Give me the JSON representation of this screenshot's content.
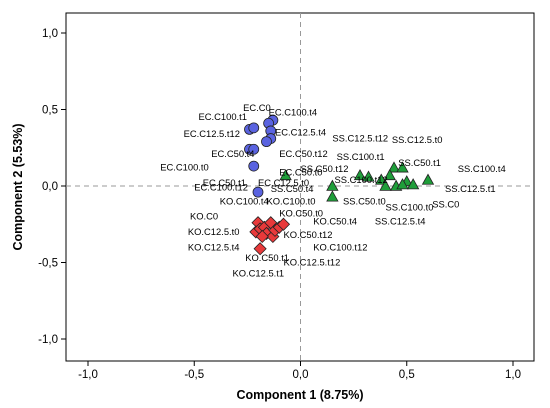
{
  "chart_data": {
    "type": "scatter",
    "xlabel": "Component 1 (8.75%)",
    "ylabel": "Component 2 (5.53%)",
    "xlim": [
      -1.0,
      1.0
    ],
    "ylim": [
      -1.0,
      1.0
    ],
    "x_ticks": [
      "-1,0",
      "-0,5",
      "0,0",
      "0,5",
      "1,0"
    ],
    "y_ticks": [
      "1,0",
      "0,5",
      "0,0",
      "-0,5",
      "-1,0"
    ],
    "reference_lines": {
      "x": 0,
      "y": 0,
      "style": "dashed"
    },
    "series": [
      {
        "marker": "circle",
        "color": "#5a63e0",
        "points": [
          {
            "x": -0.24,
            "y": 0.37
          },
          {
            "x": -0.22,
            "y": 0.38
          },
          {
            "x": -0.13,
            "y": 0.43
          },
          {
            "x": -0.15,
            "y": 0.41
          },
          {
            "x": -0.14,
            "y": 0.36
          },
          {
            "x": -0.14,
            "y": 0.31
          },
          {
            "x": -0.16,
            "y": 0.29
          },
          {
            "x": -0.24,
            "y": 0.24
          },
          {
            "x": -0.22,
            "y": 0.24
          },
          {
            "x": -0.22,
            "y": 0.13
          },
          {
            "x": -0.2,
            "y": -0.04
          }
        ]
      },
      {
        "marker": "diamond",
        "color": "#e8393a",
        "points": [
          {
            "x": -0.2,
            "y": -0.24
          },
          {
            "x": -0.21,
            "y": -0.3
          },
          {
            "x": -0.19,
            "y": -0.28
          },
          {
            "x": -0.17,
            "y": -0.27
          },
          {
            "x": -0.16,
            "y": -0.31
          },
          {
            "x": -0.14,
            "y": -0.24
          },
          {
            "x": -0.13,
            "y": -0.33
          },
          {
            "x": -0.12,
            "y": -0.29
          },
          {
            "x": -0.1,
            "y": -0.27
          },
          {
            "x": -0.08,
            "y": -0.25
          },
          {
            "x": -0.18,
            "y": -0.33
          },
          {
            "x": -0.19,
            "y": -0.41
          }
        ]
      },
      {
        "marker": "triangle",
        "color": "#1f9e3a",
        "points": [
          {
            "x": -0.07,
            "y": 0.07
          },
          {
            "x": 0.28,
            "y": 0.07
          },
          {
            "x": 0.32,
            "y": 0.06
          },
          {
            "x": 0.38,
            "y": 0.04
          },
          {
            "x": 0.4,
            "y": 0.0
          },
          {
            "x": 0.44,
            "y": 0.12
          },
          {
            "x": 0.48,
            "y": 0.12
          },
          {
            "x": 0.42,
            "y": 0.07
          },
          {
            "x": 0.5,
            "y": 0.03
          },
          {
            "x": 0.45,
            "y": 0.0
          },
          {
            "x": 0.48,
            "y": 0.01
          },
          {
            "x": 0.6,
            "y": 0.04
          },
          {
            "x": 0.53,
            "y": 0.01
          },
          {
            "x": 0.15,
            "y": 0.0
          },
          {
            "x": 0.15,
            "y": -0.07
          }
        ]
      }
    ],
    "annotations": [
      {
        "text": "EC.C0",
        "x": -0.27,
        "y": 0.49
      },
      {
        "text": "EC.C100.t1",
        "x": -0.48,
        "y": 0.43
      },
      {
        "text": "EC.C100.t4",
        "x": -0.15,
        "y": 0.46
      },
      {
        "text": "EC.C12.5.t12",
        "x": -0.55,
        "y": 0.32
      },
      {
        "text": "EC.C12.5.t4",
        "x": -0.12,
        "y": 0.33
      },
      {
        "text": "EC.C50.t4",
        "x": -0.42,
        "y": 0.19
      },
      {
        "text": "EC.C50.t12",
        "x": -0.1,
        "y": 0.19
      },
      {
        "text": "EC.C100.t0",
        "x": -0.66,
        "y": 0.1
      },
      {
        "text": "EC.C50.t0",
        "x": -0.1,
        "y": 0.07
      },
      {
        "text": "EC.C50.t1",
        "x": -0.46,
        "y": 0.0
      },
      {
        "text": "EC.C12.5.t0",
        "x": -0.2,
        "y": 0.0
      },
      {
        "text": "EC.C100.t12",
        "x": -0.5,
        "y": -0.03
      },
      {
        "text": "KO.C100.t4",
        "x": -0.38,
        "y": -0.12
      },
      {
        "text": "KO.C100.t0",
        "x": -0.16,
        "y": -0.12
      },
      {
        "text": "KO.C0",
        "x": -0.52,
        "y": -0.22
      },
      {
        "text": "KO.C50.t0",
        "x": -0.1,
        "y": -0.2
      },
      {
        "text": "KO.C12.5.t0",
        "x": -0.53,
        "y": -0.32
      },
      {
        "text": "KO.C50.t12",
        "x": -0.08,
        "y": -0.34
      },
      {
        "text": "KO.C12.5.t4",
        "x": -0.53,
        "y": -0.42
      },
      {
        "text": "KO.C100.t12",
        "x": 0.06,
        "y": -0.42
      },
      {
        "text": "KO.C50.t1",
        "x": -0.26,
        "y": -0.49
      },
      {
        "text": "KO.C12.5.t12",
        "x": -0.08,
        "y": -0.52
      },
      {
        "text": "KO.C12.5.t1",
        "x": -0.32,
        "y": -0.59
      },
      {
        "text": "KO.C50.t4",
        "x": 0.06,
        "y": -0.25
      },
      {
        "text": "SS.C12.5.t12",
        "x": 0.15,
        "y": 0.29
      },
      {
        "text": "SS.C12.5.t0",
        "x": 0.43,
        "y": 0.28
      },
      {
        "text": "SS.C100.t1",
        "x": 0.17,
        "y": 0.17
      },
      {
        "text": "SS.C50.t1",
        "x": 0.46,
        "y": 0.13
      },
      {
        "text": "SS.C100.t4",
        "x": 0.74,
        "y": 0.09
      },
      {
        "text": "SS.C50.t12",
        "x": 0.0,
        "y": 0.09
      },
      {
        "text": "SS.C100.t12",
        "x": 0.16,
        "y": 0.02
      },
      {
        "text": "SS.C12.5.t1",
        "x": 0.68,
        "y": -0.04
      },
      {
        "text": "SS.C50.t4",
        "x": -0.14,
        "y": -0.04
      },
      {
        "text": "SS.C50.t0",
        "x": 0.2,
        "y": -0.12
      },
      {
        "text": "SS.C100.t0",
        "x": 0.4,
        "y": -0.16
      },
      {
        "text": "SS.C0",
        "x": 0.62,
        "y": -0.14
      },
      {
        "text": "SS.C12.5.t4",
        "x": 0.35,
        "y": -0.25
      }
    ]
  },
  "colors": {
    "frame": "#000000",
    "reference_line": "#999999"
  }
}
